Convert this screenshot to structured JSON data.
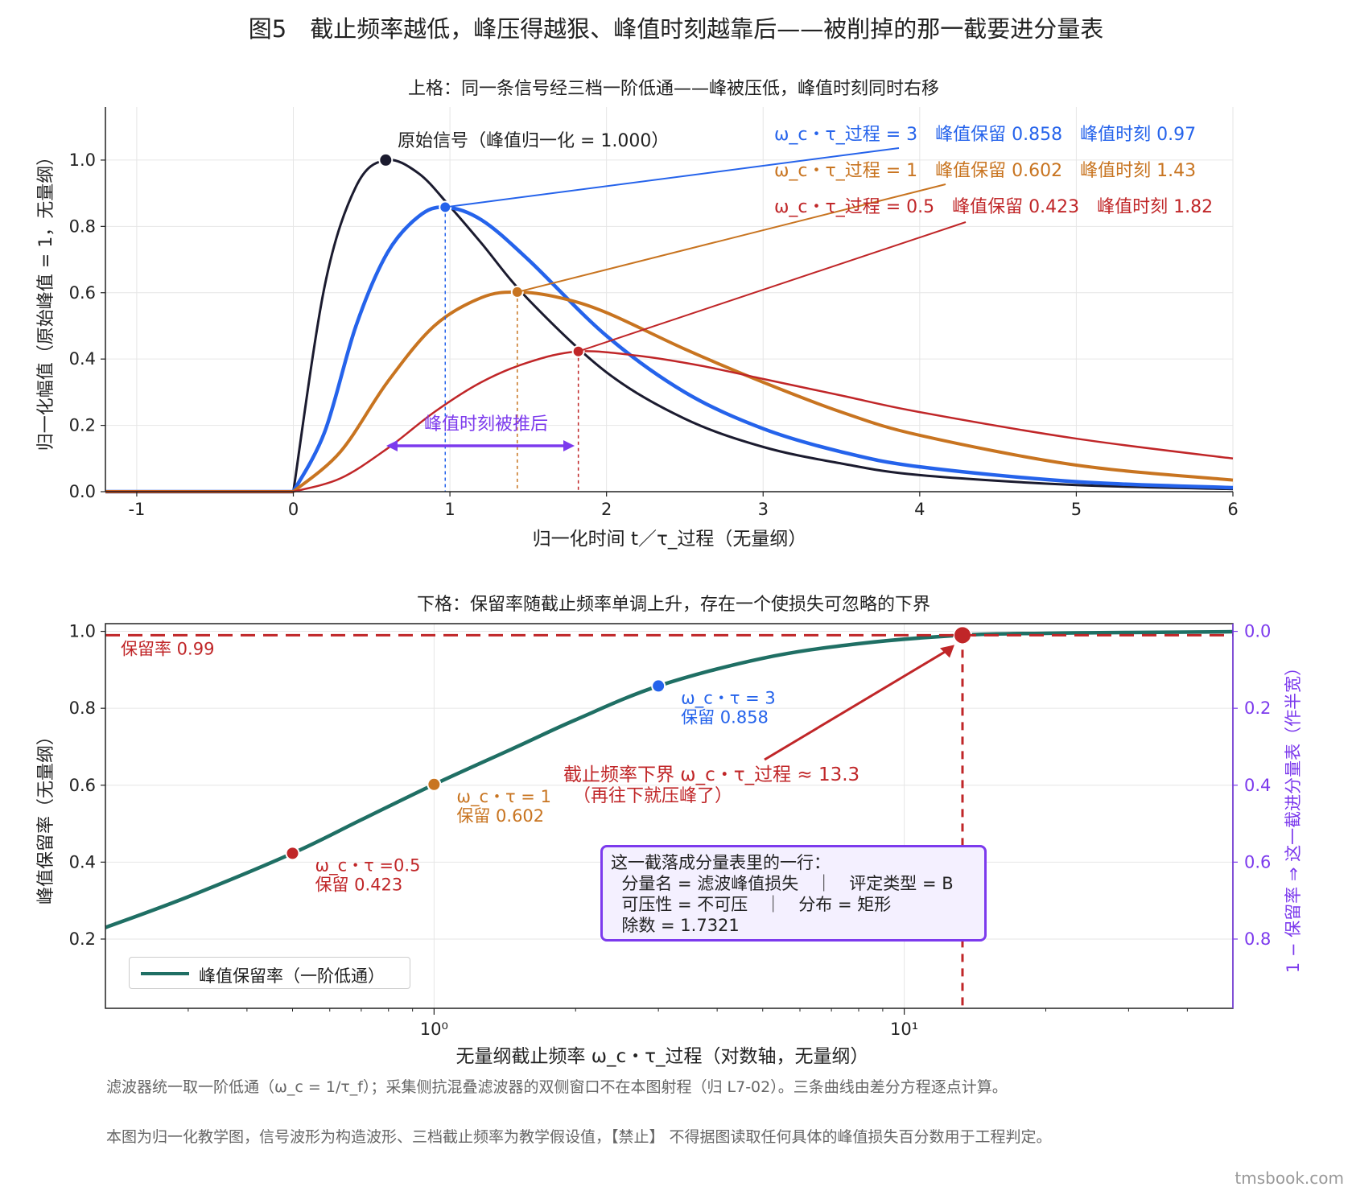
{
  "figure_title": "图5　截止频率越低，峰压得越狠、峰值时刻越靠后——被削掉的那一截要进分量表",
  "colors": {
    "original": "#1b1b2f",
    "wc3": "#2563eb",
    "wc1": "#c87420",
    "wc05": "#c02628",
    "retention": "#1f6f64",
    "accent_purple": "#7c3aed"
  },
  "chart_data": [
    {
      "type": "line",
      "title": "上格：同一条信号经三档一阶低通——峰被压低，峰值时刻同时右移",
      "xlabel": "归一化时间 t／τ_过程（无量纲）",
      "ylabel": "归一化幅值（原始峰值 = 1，无量纲）",
      "xlim": [
        -1.2,
        6
      ],
      "ylim": [
        0,
        1.16
      ],
      "xticks": [
        "-1",
        "0",
        "1",
        "2",
        "3",
        "4",
        "5",
        "6"
      ],
      "yticks": [
        "0.0",
        "0.2",
        "0.4",
        "0.6",
        "0.8",
        "1.0"
      ],
      "grid": true,
      "series": [
        {
          "key": "original",
          "x": [
            -1.2,
            0,
            0.2,
            0.4,
            0.59,
            0.8,
            1.0,
            1.2,
            1.5,
            2.0,
            2.5,
            3.0,
            3.5,
            4.0,
            5.0,
            6.0
          ],
          "y": [
            0,
            0,
            0.62,
            0.92,
            1.0,
            0.96,
            0.86,
            0.75,
            0.58,
            0.36,
            0.22,
            0.135,
            0.085,
            0.05,
            0.02,
            0.008
          ]
        },
        {
          "key": "wc3",
          "x": [
            -1.2,
            0,
            0.2,
            0.4,
            0.6,
            0.8,
            0.97,
            1.2,
            1.5,
            2.0,
            2.5,
            3.0,
            3.5,
            4.0,
            5.0,
            6.0
          ],
          "y": [
            0,
            0,
            0.18,
            0.5,
            0.72,
            0.83,
            0.858,
            0.82,
            0.7,
            0.47,
            0.3,
            0.19,
            0.12,
            0.075,
            0.03,
            0.012
          ]
        },
        {
          "key": "wc1",
          "x": [
            -1.2,
            0,
            0.3,
            0.6,
            0.9,
            1.2,
            1.43,
            1.7,
            2.0,
            2.5,
            3.0,
            3.5,
            4.0,
            5.0,
            6.0
          ],
          "y": [
            0,
            0,
            0.12,
            0.33,
            0.5,
            0.585,
            0.602,
            0.585,
            0.54,
            0.43,
            0.33,
            0.24,
            0.17,
            0.08,
            0.035
          ]
        },
        {
          "key": "wc05",
          "x": [
            -1.2,
            0,
            0.3,
            0.6,
            0.9,
            1.2,
            1.5,
            1.82,
            2.2,
            2.6,
            3.0,
            3.5,
            4.0,
            5.0,
            6.0
          ],
          "y": [
            0,
            0,
            0.04,
            0.13,
            0.24,
            0.33,
            0.39,
            0.423,
            0.41,
            0.38,
            0.34,
            0.29,
            0.24,
            0.16,
            0.1
          ]
        }
      ],
      "peaks": [
        {
          "key": "original",
          "x": 0.59,
          "y": 1.0
        },
        {
          "key": "wc3",
          "x": 0.97,
          "y": 0.858
        },
        {
          "key": "wc1",
          "x": 1.43,
          "y": 0.602
        },
        {
          "key": "wc05",
          "x": 1.82,
          "y": 0.423
        }
      ],
      "annotations": {
        "original": "原始信号（峰值归一化 = 1.000）",
        "wc3": "ω_c・τ_过程 = 3　峰值保留 0.858　峰值时刻 0.97",
        "wc1": "ω_c・τ_过程 = 1　峰值保留 0.602　峰值时刻 1.43",
        "wc05": "ω_c・τ_过程 = 0.5　峰值保留 0.423　峰值时刻 1.82",
        "shift": "峰值时刻被推后"
      }
    },
    {
      "type": "line",
      "title": "下格：保留率随截止频率单调上升，存在一个使损失可忽略的下界",
      "xlabel": "无量纲截止频率 ω_c・τ_过程（对数轴，无量纲）",
      "ylabel": "峰值保留率（无量纲）",
      "ylabel_right": "1 − 保留率 ⇒ 这一截进分量表（作半宽）",
      "xscale": "log",
      "xlim": [
        0.2,
        50
      ],
      "ylim": [
        0.02,
        1.02
      ],
      "xticks": [
        "10⁰",
        "10¹"
      ],
      "yticks": [
        "0.2",
        "0.4",
        "0.6",
        "0.8",
        "1.0"
      ],
      "yticks_right": [
        "0.0",
        "0.2",
        "0.4",
        "0.6",
        "0.8"
      ],
      "grid": true,
      "legend": "峰值保留率（一阶低通）",
      "series": [
        {
          "key": "retention",
          "x": [
            0.2,
            0.3,
            0.5,
            0.7,
            1.0,
            1.5,
            2.0,
            3.0,
            5.0,
            8.0,
            13.3,
            20,
            30,
            50
          ],
          "y": [
            0.23,
            0.31,
            0.423,
            0.51,
            0.602,
            0.7,
            0.77,
            0.858,
            0.93,
            0.968,
            0.99,
            0.995,
            0.997,
            0.999
          ]
        }
      ],
      "markers": [
        {
          "key": "wc05",
          "x": 0.5,
          "y": 0.423,
          "label1": "ω_c・τ =0.5",
          "label2": "保留 0.423"
        },
        {
          "key": "wc1",
          "x": 1.0,
          "y": 0.602,
          "label1": "ω_c・τ = 1",
          "label2": "保留 0.602"
        },
        {
          "key": "wc3",
          "x": 3.0,
          "y": 0.858,
          "label1": "ω_c・τ = 3",
          "label2": "保留 0.858"
        },
        {
          "key": "wc05",
          "x": 13.3,
          "y": 0.99,
          "label1": "",
          "label2": ""
        }
      ],
      "threshold": {
        "y": 0.99,
        "label": "保留率 0.99"
      },
      "cutoff": {
        "x": 13.3,
        "label1": "截止频率下界 ω_c・τ_过程 ≈ 13.3",
        "label2": "（再往下就压峰了）"
      }
    }
  ],
  "infobox": {
    "line1": "这一截落成分量表里的一行：",
    "line2": "  分量名 = 滤波峰值损失　｜　评定类型 = B",
    "line3": "  可压性 = 不可压　｜　分布 = 矩形",
    "line4": "  除数 = 1.7321"
  },
  "notes": {
    "note1": "滤波器统一取一阶低通（ω_c = 1/τ_f）；采集侧抗混叠滤波器的双侧窗口不在本图射程（归 L7-02）。三条曲线由差分方程逐点计算。",
    "note2": "本图为归一化教学图，信号波形为构造波形、三档截止频率为教学假设值，【禁止】 不得据图读取任何具体的峰值损失百分数用于工程判定。"
  },
  "watermark": "tmsbook.com"
}
